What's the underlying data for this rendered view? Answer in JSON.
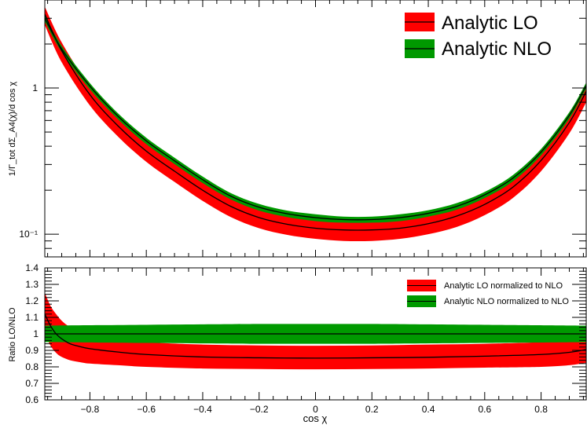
{
  "chart_data": [
    {
      "panel": "main",
      "type": "line",
      "ylabel": "1/Γ_tot dΣ_A4(χ)/d cos χ",
      "yscale": "log",
      "xlim": [
        -0.96,
        0.96
      ],
      "ylim": [
        0.07,
        4.0
      ],
      "yticks_labeled": [
        {
          "value": 1,
          "label": "1"
        },
        {
          "value": 0.1,
          "label": "10⁻¹"
        }
      ],
      "series": [
        {
          "name": "Analytic LO",
          "color": "#ff0000",
          "x": [
            -0.96,
            -0.9,
            -0.8,
            -0.7,
            -0.6,
            -0.5,
            -0.4,
            -0.3,
            -0.2,
            -0.1,
            0.0,
            0.1,
            0.2,
            0.3,
            0.4,
            0.5,
            0.6,
            0.7,
            0.8,
            0.9,
            0.96
          ],
          "y": [
            3.2,
            1.8,
            0.9,
            0.55,
            0.37,
            0.27,
            0.2,
            0.155,
            0.13,
            0.117,
            0.11,
            0.107,
            0.107,
            0.11,
            0.118,
            0.133,
            0.16,
            0.21,
            0.32,
            0.58,
            0.95
          ],
          "band_low": [
            2.7,
            1.5,
            0.76,
            0.465,
            0.313,
            0.228,
            0.169,
            0.131,
            0.11,
            0.099,
            0.093,
            0.09,
            0.09,
            0.093,
            0.1,
            0.112,
            0.135,
            0.177,
            0.27,
            0.49,
            0.8
          ],
          "band_high": [
            3.6,
            2.05,
            1.02,
            0.62,
            0.42,
            0.305,
            0.226,
            0.175,
            0.147,
            0.132,
            0.124,
            0.121,
            0.121,
            0.124,
            0.133,
            0.15,
            0.181,
            0.237,
            0.36,
            0.655,
            1.07
          ]
        },
        {
          "name": "Analytic NLO",
          "color": "#009900",
          "x": [
            -0.96,
            -0.9,
            -0.8,
            -0.7,
            -0.6,
            -0.5,
            -0.4,
            -0.3,
            -0.2,
            -0.1,
            0.0,
            0.1,
            0.2,
            0.3,
            0.4,
            0.5,
            0.6,
            0.7,
            0.8,
            0.9,
            0.96
          ],
          "y": [
            3.0,
            1.85,
            1.03,
            0.64,
            0.435,
            0.318,
            0.236,
            0.182,
            0.153,
            0.138,
            0.13,
            0.126,
            0.126,
            0.13,
            0.139,
            0.155,
            0.186,
            0.242,
            0.365,
            0.65,
            1.04
          ],
          "band_low": [
            2.85,
            1.76,
            0.98,
            0.61,
            0.413,
            0.302,
            0.224,
            0.173,
            0.145,
            0.131,
            0.123,
            0.12,
            0.12,
            0.123,
            0.132,
            0.147,
            0.177,
            0.23,
            0.347,
            0.618,
            0.99
          ],
          "band_high": [
            3.15,
            1.94,
            1.08,
            0.67,
            0.457,
            0.334,
            0.248,
            0.191,
            0.161,
            0.145,
            0.137,
            0.132,
            0.132,
            0.137,
            0.146,
            0.163,
            0.195,
            0.254,
            0.383,
            0.683,
            1.09
          ]
        }
      ],
      "legend": {
        "position": "top-right",
        "entries": [
          "Analytic LO",
          "Analytic NLO"
        ]
      }
    },
    {
      "panel": "ratio",
      "type": "line",
      "xlabel": "cos χ",
      "ylabel": "Ratio LO/NLO",
      "xlim": [
        -0.96,
        0.96
      ],
      "ylim": [
        0.6,
        1.4
      ],
      "xticks": [
        -0.8,
        -0.6,
        -0.4,
        -0.2,
        0,
        0.2,
        0.4,
        0.6,
        0.8
      ],
      "xtick_labels": [
        "−0.8",
        "−0.6",
        "−0.4",
        "−0.2",
        "0",
        "0.2",
        "0.4",
        "0.6",
        "0.8"
      ],
      "yticks": [
        0.6,
        0.7,
        0.8,
        0.9,
        1,
        1.1,
        1.2,
        1.3,
        1.4
      ],
      "ytick_labels": [
        "0.6",
        "0.7",
        "0.8",
        "0.9",
        "1",
        "1.1",
        "1.2",
        "1.3",
        "1.4"
      ],
      "series": [
        {
          "name": "Analytic LO normalized to NLO",
          "color": "#ff0000",
          "x": [
            -0.96,
            -0.94,
            -0.92,
            -0.9,
            -0.87,
            -0.84,
            -0.8,
            -0.7,
            -0.6,
            -0.4,
            -0.2,
            0.0,
            0.2,
            0.4,
            0.6,
            0.8,
            0.9,
            0.96
          ],
          "y": [
            1.12,
            1.05,
            1.0,
            0.97,
            0.94,
            0.925,
            0.91,
            0.89,
            0.875,
            0.86,
            0.855,
            0.853,
            0.855,
            0.858,
            0.865,
            0.875,
            0.888,
            0.905
          ],
          "band_low": [
            1.0,
            0.93,
            0.885,
            0.86,
            0.84,
            0.83,
            0.82,
            0.81,
            0.8,
            0.79,
            0.787,
            0.785,
            0.787,
            0.79,
            0.795,
            0.8,
            0.81,
            0.825
          ],
          "band_high": [
            1.25,
            1.17,
            1.12,
            1.08,
            1.04,
            1.02,
            1.0,
            0.97,
            0.95,
            0.935,
            0.93,
            0.928,
            0.93,
            0.935,
            0.94,
            0.95,
            0.965,
            0.985
          ]
        },
        {
          "name": "Analytic NLO normalized to NLO",
          "color": "#009900",
          "x": [
            -0.96,
            -0.6,
            -0.2,
            0.0,
            0.2,
            0.6,
            0.96
          ],
          "y": [
            1.0,
            1.0,
            1.0,
            1.0,
            1.0,
            1.0,
            1.0
          ],
          "band_low": [
            0.95,
            0.945,
            0.94,
            0.94,
            0.94,
            0.945,
            0.95
          ],
          "band_high": [
            1.05,
            1.055,
            1.06,
            1.06,
            1.06,
            1.055,
            1.05
          ]
        }
      ],
      "legend": {
        "position": "top-right",
        "entries": [
          "Analytic LO normalized to NLO",
          "Analytic NLO normalized to NLO"
        ]
      }
    }
  ]
}
